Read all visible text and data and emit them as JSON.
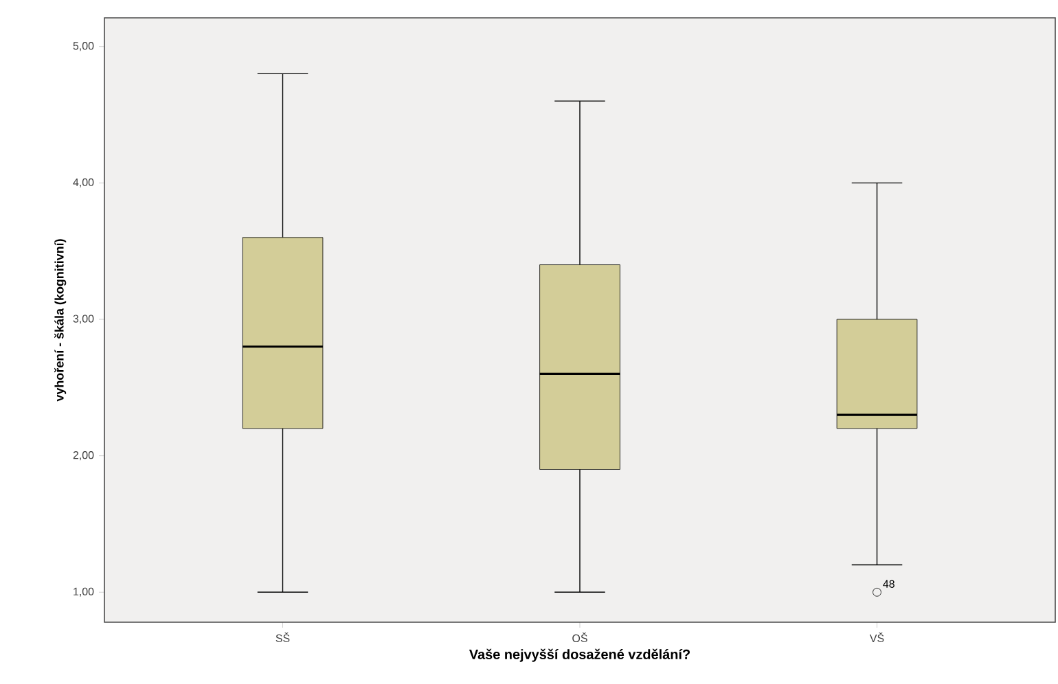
{
  "chart_data": {
    "type": "box",
    "xlabel": "Vaše nejvyšší dosažené vzdělání?",
    "ylabel": "vyhoření - škála (kognitivní)",
    "categories": [
      "SŠ",
      "OŠ",
      "VŠ"
    ],
    "boxes": [
      {
        "low": 1.0,
        "q1": 2.2,
        "median": 2.8,
        "q3": 3.6,
        "high": 4.8
      },
      {
        "low": 1.0,
        "q1": 1.9,
        "median": 2.6,
        "q3": 3.4,
        "high": 4.6
      },
      {
        "low": 1.2,
        "q1": 2.2,
        "median": 2.3,
        "q3": 3.0,
        "high": 4.0,
        "outliers": [
          1.0
        ]
      }
    ],
    "color": "#d3cd98",
    "ylim": [
      0.78,
      5.21
    ],
    "yticks": [
      {
        "value": 1,
        "label": "1,00"
      },
      {
        "value": 2,
        "label": "2,00"
      },
      {
        "value": 3,
        "label": "3,00"
      },
      {
        "value": 4,
        "label": "4,00"
      },
      {
        "value": 5,
        "label": "5,00"
      }
    ],
    "annotations": [
      "48"
    ]
  }
}
